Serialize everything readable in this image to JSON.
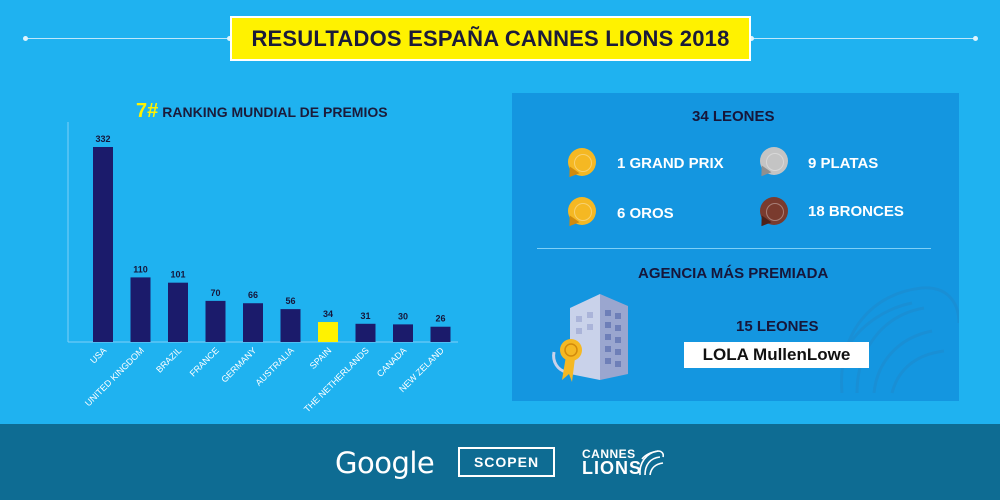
{
  "header": {
    "title": "RESULTADOS ESPAÑA CANNES LIONS 2018"
  },
  "chart_data": {
    "type": "bar",
    "rank": "7#",
    "title": "RANKING MUNDIAL DE PREMIOS",
    "categories": [
      "USA",
      "UNITED KINGDOM",
      "BRAZIL",
      "FRANCE",
      "GERMANY",
      "AUSTRALIA",
      "SPAIN",
      "THE NETHERLANDS",
      "CANADA",
      "NEW ZELAND"
    ],
    "values": [
      332,
      110,
      101,
      70,
      66,
      56,
      34,
      31,
      30,
      26
    ],
    "highlight": "SPAIN",
    "colors": {
      "bar": "#1b1b6b",
      "highlight": "#fff200",
      "axis": "#7fd0f7"
    },
    "ylim": [
      0,
      332
    ],
    "grid": false
  },
  "summary": {
    "total": "34 LEONES",
    "awards": [
      {
        "label": "1 GRAND PRIX",
        "medal": "gold-medal-icon",
        "color": "#f5b823"
      },
      {
        "label": "9 PLATAS",
        "medal": "silver-medal-icon",
        "color": "#bcbcbc"
      },
      {
        "label": "6 OROS",
        "medal": "gold-medal-icon",
        "color": "#f5b823"
      },
      {
        "label": "18 BRONCES",
        "medal": "bronze-medal-icon",
        "color": "#7a3b2e"
      }
    ],
    "agency_heading": "AGENCIA MÁS PREMIADA",
    "agency_count": "15 LEONES",
    "agency_name": "LOLA MullenLowe"
  },
  "footer": {
    "logos": [
      "Google",
      "SCOPEN"
    ],
    "cannes_line1": "CANNES",
    "cannes_line2": "LIONS"
  }
}
